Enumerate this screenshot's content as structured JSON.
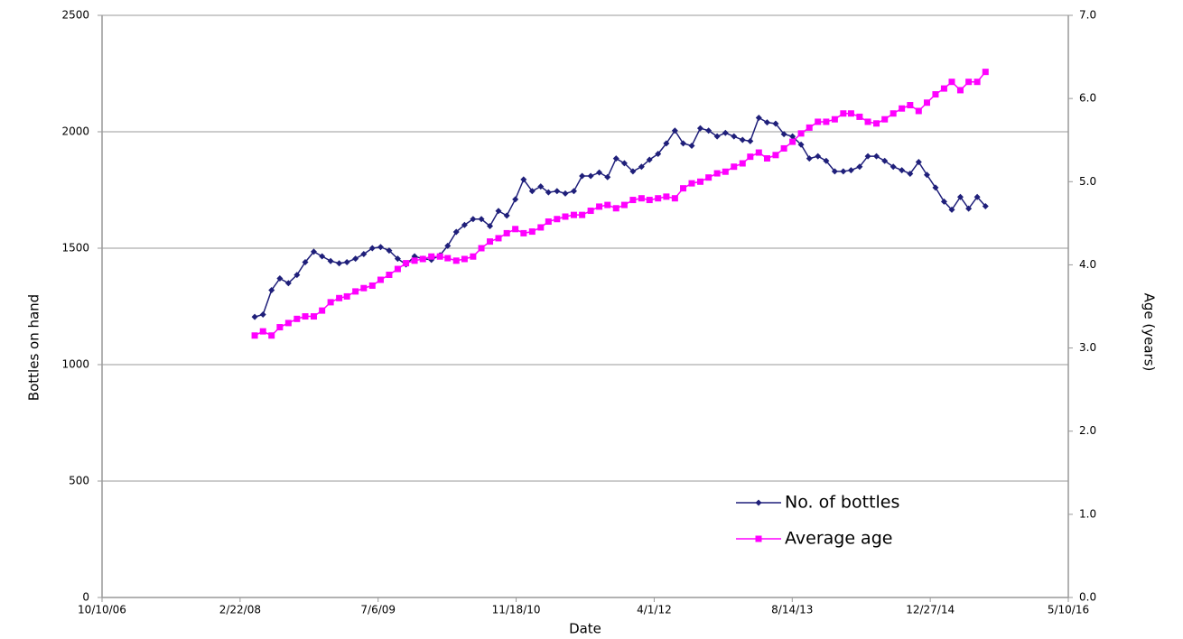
{
  "chart_data": {
    "type": "line",
    "x_label": "Date",
    "y_label": "Bottles on hand",
    "y2_label": "Age  (years)",
    "xlim": [
      "2006-10-10",
      "2016-05-10"
    ],
    "xticks": [
      {
        "value": "2006-10-10",
        "label": "10/10/06"
      },
      {
        "value": "2008-02-22",
        "label": "2/22/08"
      },
      {
        "value": "2009-07-06",
        "label": "7/6/09"
      },
      {
        "value": "2010-11-18",
        "label": "11/18/10"
      },
      {
        "value": "2012-04-01",
        "label": "4/1/12"
      },
      {
        "value": "2013-08-14",
        "label": "8/14/13"
      },
      {
        "value": "2014-12-27",
        "label": "12/27/14"
      },
      {
        "value": "2016-05-10",
        "label": "5/10/16"
      }
    ],
    "ylim": [
      0,
      2500
    ],
    "yticks": [
      0,
      500,
      1000,
      1500,
      2000,
      2500
    ],
    "y2lim": [
      0,
      7
    ],
    "y2ticks": [
      {
        "value": 0,
        "label": "0.0"
      },
      {
        "value": 1,
        "label": "1.0"
      },
      {
        "value": 2,
        "label": "2.0"
      },
      {
        "value": 3,
        "label": "3.0"
      },
      {
        "value": 4,
        "label": "4.0"
      },
      {
        "value": 5,
        "label": "5.0"
      },
      {
        "value": 6,
        "label": "6.0"
      },
      {
        "value": 7,
        "label": "7.0"
      }
    ],
    "grid": true,
    "legend": "lower right",
    "x": [
      "2008-04-15",
      "2008-05-15",
      "2008-06-15",
      "2008-07-15",
      "2008-08-15",
      "2008-09-15",
      "2008-10-15",
      "2008-11-15",
      "2008-12-15",
      "2009-01-15",
      "2009-02-15",
      "2009-03-15",
      "2009-04-15",
      "2009-05-15",
      "2009-06-15",
      "2009-07-15",
      "2009-08-15",
      "2009-09-15",
      "2009-10-15",
      "2009-11-15",
      "2009-12-15",
      "2010-01-15",
      "2010-02-15",
      "2010-03-15",
      "2010-04-15",
      "2010-05-15",
      "2010-06-15",
      "2010-07-15",
      "2010-08-15",
      "2010-09-15",
      "2010-10-15",
      "2010-11-15",
      "2010-12-15",
      "2011-01-15",
      "2011-02-15",
      "2011-03-15",
      "2011-04-15",
      "2011-05-15",
      "2011-06-15",
      "2011-07-15",
      "2011-08-15",
      "2011-09-15",
      "2011-10-15",
      "2011-11-15",
      "2011-12-15",
      "2012-01-15",
      "2012-02-15",
      "2012-03-15",
      "2012-04-15",
      "2012-05-15",
      "2012-06-15",
      "2012-07-15",
      "2012-08-15",
      "2012-09-15",
      "2012-10-15",
      "2012-11-15",
      "2012-12-15",
      "2013-01-15",
      "2013-02-15",
      "2013-03-15",
      "2013-04-15",
      "2013-05-15",
      "2013-06-15",
      "2013-07-15",
      "2013-08-15",
      "2013-09-15",
      "2013-10-15",
      "2013-11-15",
      "2013-12-15",
      "2014-01-15",
      "2014-02-15",
      "2014-03-15",
      "2014-04-15",
      "2014-05-15",
      "2014-06-15",
      "2014-07-15",
      "2014-08-15",
      "2014-09-15",
      "2014-10-15",
      "2014-11-15",
      "2014-12-15",
      "2015-01-15",
      "2015-02-15",
      "2015-03-15",
      "2015-04-15",
      "2015-05-15",
      "2015-06-15",
      "2015-07-15"
    ],
    "series": [
      {
        "name": "No. of bottles",
        "color": "#1f1f7a",
        "marker": "diamond",
        "values": [
          1205,
          1215,
          1320,
          1370,
          1350,
          1385,
          1440,
          1485,
          1465,
          1445,
          1435,
          1440,
          1455,
          1475,
          1500,
          1505,
          1490,
          1455,
          1430,
          1465,
          1455,
          1450,
          1470,
          1510,
          1570,
          1600,
          1625,
          1625,
          1595,
          1660,
          1640,
          1710,
          1795,
          1745,
          1765,
          1740,
          1745,
          1735,
          1745,
          1810,
          1810,
          1825,
          1805,
          1885,
          1865,
          1830,
          1850,
          1880,
          1905,
          1950,
          2005,
          1950,
          1940,
          2015,
          2005,
          1980,
          1995,
          1980,
          1965,
          1960,
          2060,
          2040,
          2035,
          1990,
          1980,
          1945,
          1885,
          1895,
          1875,
          1830,
          1830,
          1835,
          1850,
          1895,
          1895,
          1875,
          1850,
          1835,
          1820,
          1870,
          1815,
          1760,
          1700,
          1665,
          1720,
          1670,
          1720,
          1680
        ]
      },
      {
        "name": "Average age",
        "color": "#ff00ff",
        "marker": "square",
        "axis": "y2",
        "values": [
          3.15,
          3.2,
          3.15,
          3.25,
          3.3,
          3.35,
          3.38,
          3.38,
          3.45,
          3.55,
          3.6,
          3.62,
          3.68,
          3.72,
          3.75,
          3.82,
          3.88,
          3.95,
          4.02,
          4.05,
          4.07,
          4.1,
          4.1,
          4.08,
          4.05,
          4.07,
          4.1,
          4.2,
          4.28,
          4.32,
          4.38,
          4.43,
          4.38,
          4.4,
          4.45,
          4.52,
          4.55,
          4.58,
          4.6,
          4.6,
          4.65,
          4.7,
          4.72,
          4.68,
          4.72,
          4.78,
          4.8,
          4.78,
          4.8,
          4.82,
          4.8,
          4.92,
          4.98,
          5.0,
          5.05,
          5.1,
          5.12,
          5.18,
          5.22,
          5.3,
          5.35,
          5.28,
          5.32,
          5.4,
          5.48,
          5.58,
          5.65,
          5.72,
          5.72,
          5.75,
          5.82,
          5.82,
          5.78,
          5.72,
          5.7,
          5.75,
          5.82,
          5.88,
          5.92,
          5.85,
          5.95,
          6.05,
          6.12,
          6.2,
          6.1,
          6.2,
          6.2,
          6.32
        ]
      }
    ]
  }
}
